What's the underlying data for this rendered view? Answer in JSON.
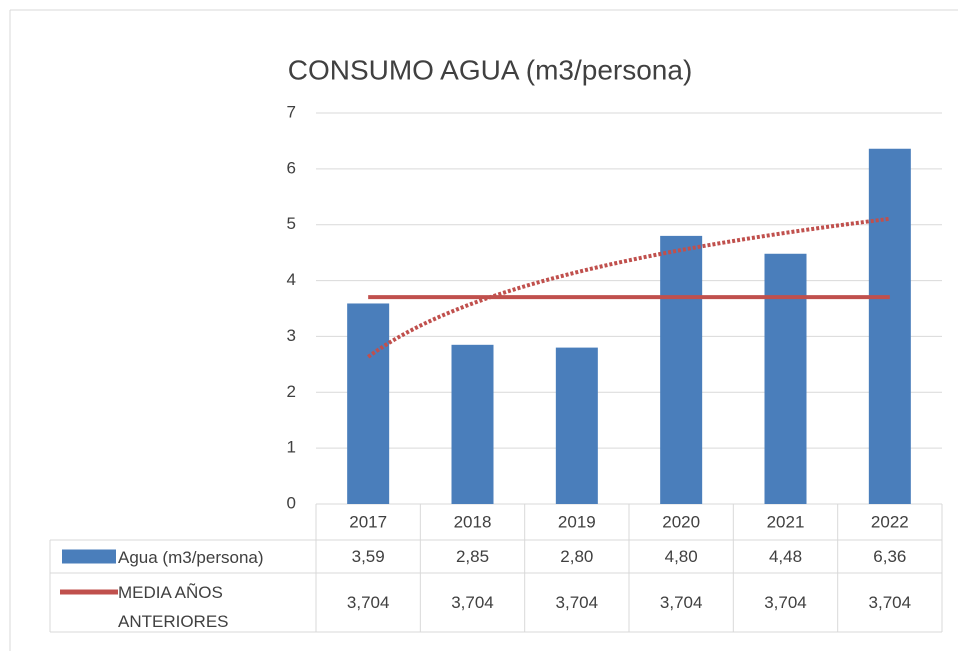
{
  "chart_data": {
    "type": "bar",
    "title": "CONSUMO AGUA (m3/persona)",
    "categories": [
      "2017",
      "2018",
      "2019",
      "2020",
      "2021",
      "2022"
    ],
    "series": [
      {
        "name": "Agua (m3/persona)",
        "type": "bar",
        "color": "#4a7ebb",
        "values": [
          3.59,
          2.85,
          2.8,
          4.8,
          4.48,
          6.36
        ],
        "value_labels": [
          "3,59",
          "2,85",
          "2,80",
          "4,80",
          "4,48",
          "6,36"
        ]
      },
      {
        "name": "MEDIA AÑOS ANTERIORES",
        "type": "line",
        "color": "#c0504d",
        "values": [
          3.704,
          3.704,
          3.704,
          3.704,
          3.704,
          3.704
        ],
        "value_labels": [
          "3,704",
          "3,704",
          "3,704",
          "3,704",
          "3,704",
          "3,704"
        ]
      }
    ],
    "trendline": {
      "series": 0,
      "kind": "logarithmic",
      "color": "#c0504d",
      "style": "dotted"
    },
    "ylim": [
      0,
      7
    ],
    "yticks": [
      0,
      1,
      2,
      3,
      4,
      5,
      6,
      7
    ],
    "grid": true,
    "data_table": true
  }
}
